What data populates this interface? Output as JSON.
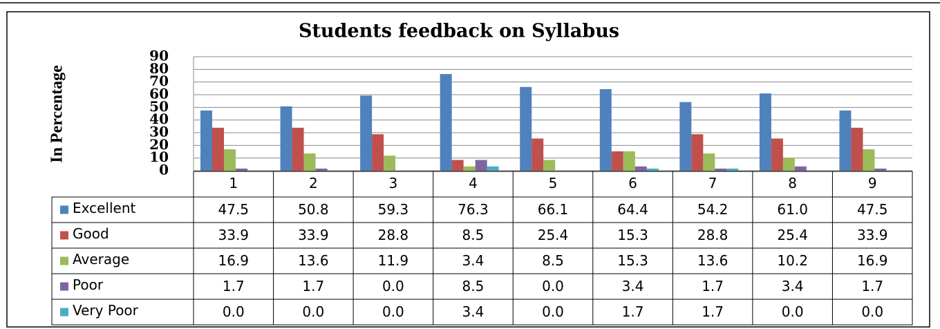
{
  "chart_data": {
    "type": "bar",
    "title": "Students feedback on Syllabus",
    "y_label": "In Percentage",
    "categories": [
      "1",
      "2",
      "3",
      "4",
      "5",
      "6",
      "7",
      "8",
      "9"
    ],
    "series": [
      {
        "name": "Excellent",
        "color": "#4f81bd",
        "values": [
          47.5,
          50.8,
          59.3,
          76.3,
          66.1,
          64.4,
          54.2,
          61.0,
          47.5
        ],
        "value_labels": [
          "47.5",
          "50.8",
          "59.3",
          "76.3",
          "66.1",
          "64.4",
          "54.2",
          "61.0",
          "47.5"
        ]
      },
      {
        "name": "Good",
        "color": "#c0504d",
        "values": [
          33.9,
          33.9,
          28.8,
          8.5,
          25.4,
          15.3,
          28.8,
          25.4,
          33.9
        ],
        "value_labels": [
          "33.9",
          "33.9",
          "28.8",
          "8.5",
          "25.4",
          "15.3",
          "28.8",
          "25.4",
          "33.9"
        ]
      },
      {
        "name": "Average",
        "color": "#9bbb59",
        "values": [
          16.9,
          13.6,
          11.9,
          3.4,
          8.5,
          15.3,
          13.6,
          10.2,
          16.9
        ],
        "value_labels": [
          "16.9",
          "13.6",
          "11.9",
          "3.4",
          "8.5",
          "15.3",
          "13.6",
          "10.2",
          "16.9"
        ]
      },
      {
        "name": "Poor",
        "color": "#8064a2",
        "values": [
          1.7,
          1.7,
          0.0,
          8.5,
          0.0,
          3.4,
          1.7,
          3.4,
          1.7
        ],
        "value_labels": [
          "1.7",
          "1.7",
          "0.0",
          "8.5",
          "0.0",
          "3.4",
          "1.7",
          "3.4",
          "1.7"
        ]
      },
      {
        "name": "Very Poor",
        "color": "#4bacc6",
        "values": [
          0.0,
          0.0,
          0.0,
          3.4,
          0.0,
          1.7,
          1.7,
          0.0,
          0.0
        ],
        "value_labels": [
          "0.0",
          "0.0",
          "0.0",
          "3.4",
          "0.0",
          "1.7",
          "1.7",
          "0.0",
          "0.0"
        ]
      }
    ],
    "ylim": [
      0,
      90
    ],
    "yticks": [
      0,
      10,
      20,
      30,
      40,
      50,
      60,
      70,
      80,
      90
    ],
    "grid": true
  }
}
